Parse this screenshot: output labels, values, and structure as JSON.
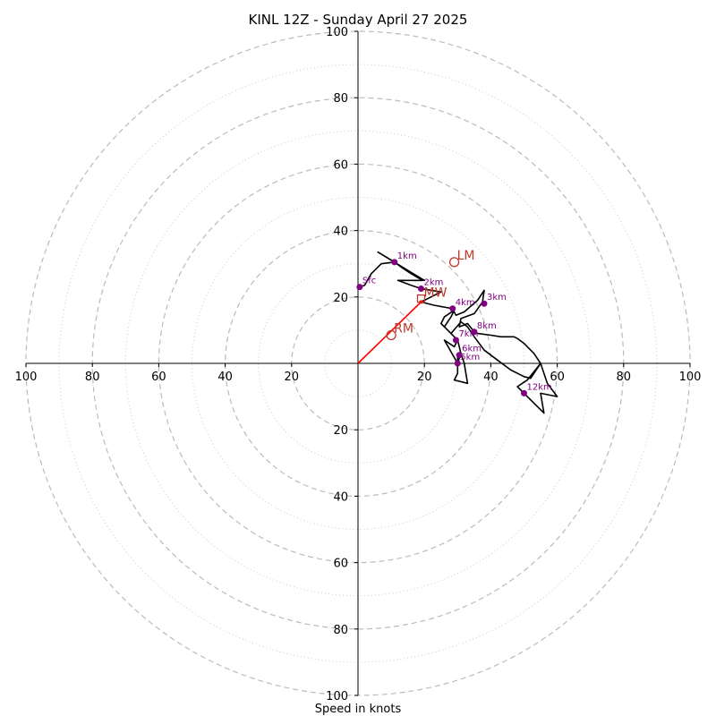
{
  "chart_data": {
    "type": "hodograph",
    "title": "KINL 12Z - Sunday April 27 2025",
    "xlabel": "Speed in knots",
    "range": [
      -100,
      100
    ],
    "major_rings": [
      20,
      40,
      60,
      80,
      100
    ],
    "minor_rings": [
      10,
      30,
      50,
      70,
      90
    ],
    "x_ticks": [
      -100,
      -80,
      -60,
      -40,
      -20,
      20,
      40,
      60,
      80,
      100
    ],
    "y_ticks": [
      -100,
      -80,
      -60,
      -40,
      -20,
      20,
      40,
      60,
      80,
      100
    ],
    "x_tick_labels": [
      "100",
      "80",
      "60",
      "40",
      "20",
      "20",
      "40",
      "60",
      "80",
      "100"
    ],
    "y_tick_labels": [
      "100",
      "80",
      "60",
      "40",
      "20",
      "20",
      "40",
      "60",
      "80",
      "100"
    ],
    "hodograph_trace": [
      [
        0.5,
        23
      ],
      [
        2,
        23.5
      ],
      [
        4,
        27
      ],
      [
        7,
        30
      ],
      [
        11,
        30.5
      ],
      [
        13,
        29
      ],
      [
        16,
        27
      ],
      [
        20,
        25
      ],
      [
        15,
        28
      ],
      [
        6,
        33.5
      ],
      [
        11,
        30.5
      ],
      [
        16,
        27
      ],
      [
        19.5,
        25
      ],
      [
        12,
        25
      ],
      [
        16,
        23.5
      ],
      [
        19,
        22.5
      ],
      [
        25,
        21.5
      ],
      [
        22,
        20
      ],
      [
        19,
        18.5
      ],
      [
        23,
        17.5
      ],
      [
        28.5,
        16.5
      ],
      [
        29.5,
        14.5
      ],
      [
        32,
        15.5
      ],
      [
        36,
        19
      ],
      [
        38,
        22
      ],
      [
        37.5,
        18.5
      ],
      [
        35,
        15
      ],
      [
        31,
        13.5
      ],
      [
        30.5,
        11
      ],
      [
        33,
        12
      ],
      [
        35,
        9.5
      ],
      [
        36,
        9
      ],
      [
        40,
        8.5
      ],
      [
        43,
        8
      ],
      [
        47,
        8
      ],
      [
        48,
        7.5
      ],
      [
        50,
        6
      ],
      [
        53,
        3
      ],
      [
        55,
        0
      ],
      [
        57,
        -6
      ],
      [
        60,
        -10
      ],
      [
        55,
        -9
      ],
      [
        56,
        -15
      ],
      [
        50,
        -9
      ],
      [
        48,
        -7
      ],
      [
        51,
        -5
      ],
      [
        55,
        0
      ],
      [
        52,
        -4.5
      ],
      [
        50,
        -4
      ],
      [
        46,
        -2
      ],
      [
        42,
        1
      ],
      [
        38,
        4
      ],
      [
        35,
        8
      ],
      [
        33,
        11
      ],
      [
        31,
        12.5
      ],
      [
        28,
        9
      ],
      [
        25,
        12
      ],
      [
        26,
        14
      ],
      [
        29,
        16
      ],
      [
        28,
        14
      ],
      [
        26,
        11
      ],
      [
        30,
        7
      ],
      [
        31,
        3
      ],
      [
        32,
        0
      ],
      [
        33,
        -6
      ],
      [
        29,
        -5
      ],
      [
        30,
        -3
      ],
      [
        30,
        0
      ],
      [
        31,
        3
      ],
      [
        30,
        7
      ],
      [
        29,
        5
      ],
      [
        26,
        7
      ],
      [
        30,
        0
      ],
      [
        30,
        2.5
      ]
    ],
    "height_markers": [
      {
        "label": "Sfc",
        "u": 0.5,
        "v": 23
      },
      {
        "label": "1km",
        "u": 11,
        "v": 30.5
      },
      {
        "label": "2km",
        "u": 19,
        "v": 22.5
      },
      {
        "label": "3km",
        "u": 38,
        "v": 18
      },
      {
        "label": "4km",
        "u": 28.5,
        "v": 16.5
      },
      {
        "label": "5km",
        "u": 30,
        "v": 0
      },
      {
        "label": "6km",
        "u": 30.5,
        "v": 2.5
      },
      {
        "label": "7km",
        "u": 29.5,
        "v": 7
      },
      {
        "label": "8km",
        "u": 35,
        "v": 9.5
      },
      {
        "label": "12km",
        "u": 50,
        "v": -9
      }
    ],
    "storm_motion": {
      "shear_vector": {
        "from": [
          0,
          0
        ],
        "to": [
          19,
          18.5
        ]
      },
      "LM": {
        "label": "LM",
        "u": 29,
        "v": 30.5
      },
      "MW": {
        "label": "MW",
        "u": 19,
        "v": 19.5
      },
      "RM": {
        "label": "RM",
        "u": 10,
        "v": 8.5
      }
    },
    "colors": {
      "trace": "#000000",
      "marker": "#800080",
      "storm": "#c0392b",
      "shear": "#ff0000",
      "ring": "#bbbbbb",
      "axis": "#000000"
    },
    "grid": true
  }
}
